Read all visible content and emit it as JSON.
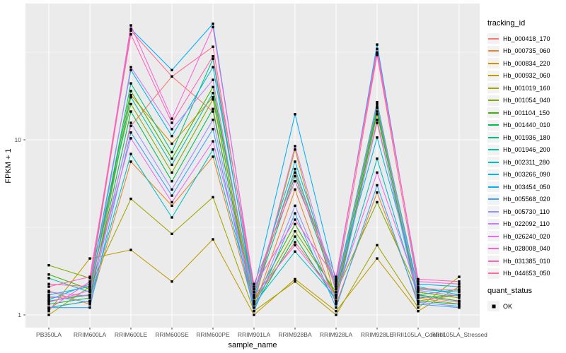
{
  "chart_data": {
    "type": "line",
    "title": "",
    "xlabel": "sample_name",
    "ylabel": "FPKM + 1",
    "y_scale": "log10",
    "y_ticks": [
      1,
      10
    ],
    "y_minor_ticks": [
      3.162,
      31.62
    ],
    "ylim": [
      0.9,
      60
    ],
    "grid": true,
    "legend_position": "right",
    "categories": [
      "PB350LA",
      "RRIM600LA",
      "RRIM600LE",
      "RRIM600SE",
      "RRIM600PE",
      "RRIM901LA",
      "RRIM928BA",
      "RRIM928LA",
      "RRIM928LE",
      "RRII105LA_Control",
      "RRII105LA_Stressed"
    ],
    "series": [
      {
        "name": "Hb_000418_170",
        "color": "#F8766D",
        "values": [
          1.25,
          1.3,
          12.0,
          23.0,
          14.5,
          1.2,
          2.6,
          1.3,
          12.5,
          1.3,
          1.2
        ]
      },
      {
        "name": "Hb_000735_060",
        "color": "#EA8331",
        "values": [
          1.37,
          1.15,
          7.5,
          4.2,
          8.0,
          1.1,
          5.2,
          1.15,
          5.0,
          1.2,
          1.3
        ]
      },
      {
        "name": "Hb_000834_220",
        "color": "#D89000",
        "values": [
          1.1,
          1.2,
          18.0,
          9.5,
          17.5,
          1.15,
          8.8,
          1.2,
          14.0,
          1.25,
          1.15
        ]
      },
      {
        "name": "Hb_000932_060",
        "color": "#C09B00",
        "values": [
          1.05,
          2.1,
          2.35,
          1.55,
          2.7,
          1.0,
          1.6,
          1.05,
          2.1,
          1.05,
          1.45
        ]
      },
      {
        "name": "Hb_001019_160",
        "color": "#A3A500",
        "values": [
          1.0,
          1.45,
          4.6,
          2.9,
          4.7,
          1.05,
          1.55,
          1.0,
          2.5,
          1.1,
          1.65
        ]
      },
      {
        "name": "Hb_001054_040",
        "color": "#7CAE00",
        "values": [
          1.92,
          1.62,
          16.0,
          6.5,
          17.0,
          1.15,
          3.0,
          1.35,
          4.4,
          1.35,
          1.25
        ]
      },
      {
        "name": "Hb_001104_150",
        "color": "#39B600",
        "values": [
          1.7,
          1.4,
          19.0,
          7.8,
          20.0,
          1.2,
          3.3,
          1.3,
          15.2,
          1.3,
          1.2
        ]
      },
      {
        "name": "Hb_001440_010",
        "color": "#00BB4E",
        "values": [
          1.15,
          1.25,
          14.5,
          5.8,
          15.0,
          1.1,
          2.8,
          1.2,
          14.5,
          1.2,
          1.15
        ]
      },
      {
        "name": "Hb_001936_180",
        "color": "#00BF7D",
        "values": [
          1.2,
          1.3,
          21.0,
          8.5,
          29.0,
          1.25,
          6.2,
          1.4,
          16.4,
          1.25,
          1.3
        ]
      },
      {
        "name": "Hb_001946_200",
        "color": "#00C1A3",
        "values": [
          1.62,
          1.35,
          17.5,
          7.2,
          18.5,
          1.3,
          6.8,
          1.45,
          15.5,
          1.4,
          1.35
        ]
      },
      {
        "name": "Hb_002311_280",
        "color": "#00BFC4",
        "values": [
          1.1,
          1.2,
          8.3,
          3.6,
          8.8,
          1.15,
          2.3,
          1.25,
          7.8,
          1.3,
          1.4
        ]
      },
      {
        "name": "Hb_003266_090",
        "color": "#00BAE0",
        "values": [
          1.3,
          1.45,
          25.0,
          10.5,
          26.0,
          1.35,
          7.5,
          1.5,
          10.3,
          1.45,
          1.3
        ]
      },
      {
        "name": "Hb_003454_050",
        "color": "#00B0F6",
        "values": [
          1.22,
          1.5,
          43.0,
          25.0,
          46.0,
          1.4,
          14.0,
          1.55,
          35.0,
          1.5,
          1.45
        ]
      },
      {
        "name": "Hb_005568_020",
        "color": "#35A2FF",
        "values": [
          1.1,
          1.1,
          11.0,
          4.8,
          11.5,
          1.05,
          3.8,
          1.1,
          5.5,
          1.15,
          1.1
        ]
      },
      {
        "name": "Hb_005730_110",
        "color": "#9590FF",
        "values": [
          1.28,
          1.18,
          12.5,
          5.2,
          13.0,
          1.1,
          4.2,
          1.18,
          13.0,
          1.18,
          1.12
        ]
      },
      {
        "name": "Hb_022092_110",
        "color": "#C77CFF",
        "values": [
          1.35,
          1.28,
          26.0,
          11.5,
          22.0,
          1.18,
          9.2,
          1.35,
          16.0,
          1.28,
          1.18
        ]
      },
      {
        "name": "Hb_026240_020",
        "color": "#E76BF3",
        "values": [
          1.18,
          1.38,
          10.2,
          4.4,
          9.8,
          1.28,
          2.5,
          1.28,
          6.5,
          1.38,
          1.28
        ]
      },
      {
        "name": "Hb_028008_040",
        "color": "#FA62DB",
        "values": [
          1.08,
          1.55,
          45.0,
          13.2,
          44.0,
          1.45,
          3.5,
          1.6,
          33.0,
          1.55,
          1.5
        ]
      },
      {
        "name": "Hb_031385_010",
        "color": "#FF62BC",
        "values": [
          1.45,
          1.65,
          40.0,
          12.5,
          30.0,
          1.5,
          5.8,
          1.65,
          31.5,
          1.6,
          1.55
        ]
      },
      {
        "name": "Hb_044653_050",
        "color": "#FF6A98",
        "values": [
          1.5,
          1.45,
          42.0,
          23.0,
          34.0,
          1.35,
          6.5,
          1.45,
          30.5,
          1.42,
          1.38
        ]
      }
    ],
    "marker": {
      "shape": "square",
      "color": "#000000"
    },
    "legend": {
      "color_legend_title": "tracking_id",
      "shape_legend_title": "quant_status",
      "shape_items": [
        {
          "label": "OK",
          "shape": "square",
          "color": "#000000"
        }
      ]
    },
    "style": {
      "panel_bg": "#EBEBEB",
      "grid_color": "#FFFFFF",
      "axis_text_color": "#4D4D4D",
      "axis_title_color": "#000000",
      "tick_color": "#333333",
      "legend_key_bg": "#F2F2F2"
    }
  }
}
